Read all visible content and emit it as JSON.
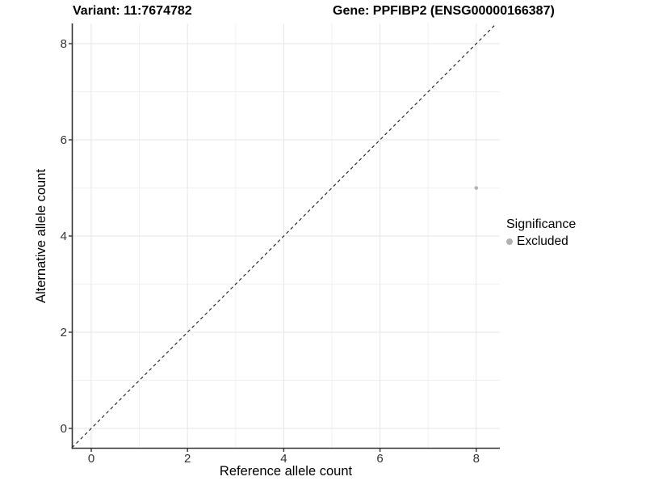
{
  "chart_data": {
    "type": "scatter",
    "titles": [
      "Variant: 11:7674782",
      "Gene: PPFIBP2 (ENSG00000166387)"
    ],
    "xlabel": "Reference allele count",
    "ylabel": "Alternative allele count",
    "xlim": [
      -0.4,
      8.4
    ],
    "ylim": [
      -0.4,
      8.4
    ],
    "x_ticks": [
      0,
      2,
      4,
      6,
      8
    ],
    "y_ticks": [
      0,
      2,
      4,
      6,
      8
    ],
    "minor_grid": [
      1,
      3,
      5,
      7
    ],
    "grid": "on",
    "points": [
      {
        "x": 8,
        "y": 5,
        "series": "Excluded"
      }
    ],
    "reference_line": {
      "type": "identity",
      "style": "dashed",
      "from": [
        -0.4,
        -0.4
      ],
      "to": [
        8.4,
        8.4
      ]
    },
    "legend": {
      "title": "Significance",
      "position": "right",
      "entries": [
        {
          "label": "Excluded",
          "color": "#b1b1b1"
        }
      ]
    },
    "colors": {
      "point": "#b3b3b3",
      "grid_major": "#e6e6e6",
      "grid_minor": "#f1f1f1",
      "axis": "#333333",
      "dashed_line": "#1a1a1a",
      "background": "#ffffff"
    }
  }
}
